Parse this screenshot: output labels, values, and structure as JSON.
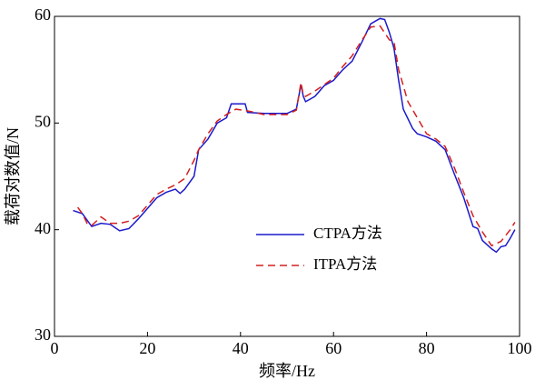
{
  "chart_data": {
    "type": "line",
    "xlabel": "频率/Hz",
    "ylabel": "载荷对数值/N",
    "xlim": [
      0,
      100
    ],
    "xticks": [
      0,
      20,
      40,
      60,
      80,
      100
    ],
    "ylim": [
      30,
      60
    ],
    "yticks": [
      30,
      40,
      50,
      60
    ],
    "grid": false,
    "legend": "center",
    "series": [
      {
        "name": "CTPA方法",
        "color": "#1a1acc",
        "style": "solid",
        "x": [
          4,
          6,
          8,
          10,
          12,
          14,
          16,
          18,
          20,
          22,
          24,
          26,
          27,
          28,
          30,
          31,
          33,
          35,
          37,
          38,
          41,
          41.5,
          45,
          50,
          52,
          53,
          53.5,
          54,
          56,
          58,
          60,
          62,
          64,
          66,
          68,
          70,
          71,
          72,
          73,
          74,
          75,
          77,
          78,
          80,
          82,
          84,
          86,
          88,
          90,
          91,
          92,
          94,
          95,
          96,
          97,
          98,
          99
        ],
        "values": [
          41.8,
          41.5,
          40.3,
          40.6,
          40.5,
          39.9,
          40.1,
          41,
          42,
          43,
          43.5,
          43.8,
          43.4,
          43.8,
          45,
          47.5,
          48.5,
          50,
          50.5,
          51.8,
          51.8,
          51,
          50.9,
          50.9,
          51.3,
          53.6,
          52.5,
          52,
          52.5,
          53.5,
          54,
          55,
          55.8,
          57.5,
          59.3,
          59.8,
          59.7,
          58.5,
          57,
          54,
          51.3,
          49.5,
          49,
          48.7,
          48.3,
          47.5,
          45.2,
          43,
          40.3,
          40.1,
          39,
          38.2,
          37.9,
          38.4,
          38.5,
          39.2,
          40
        ]
      },
      {
        "name": "ITPA方法",
        "color": "#d42020",
        "style": "dashed",
        "x": [
          5,
          6,
          7,
          8,
          10,
          12,
          14,
          16,
          18,
          20,
          22,
          24,
          26,
          28,
          30,
          31,
          33,
          35,
          37,
          39,
          42,
          45,
          50,
          52,
          53,
          53.5,
          54,
          56,
          58,
          60,
          62,
          64,
          66,
          68,
          70,
          72,
          73,
          74,
          76,
          78,
          80,
          82,
          84,
          86,
          88,
          90,
          92,
          94,
          96,
          98,
          99
        ],
        "values": [
          42.1,
          41.5,
          40.6,
          40.4,
          41.2,
          40.6,
          40.6,
          40.8,
          41.3,
          42.3,
          43.3,
          43.8,
          44.2,
          44.8,
          46.5,
          47.5,
          49,
          50.2,
          50.8,
          51.3,
          51.1,
          50.8,
          50.8,
          51.2,
          53.8,
          52.6,
          52.5,
          53,
          53.6,
          54.2,
          55.3,
          56.3,
          57.7,
          59,
          59.1,
          57.8,
          57.6,
          55,
          52,
          50.5,
          49,
          48.5,
          47.8,
          45.8,
          43.5,
          41.3,
          39.8,
          38.5,
          38.9,
          40,
          40.7
        ]
      }
    ]
  }
}
